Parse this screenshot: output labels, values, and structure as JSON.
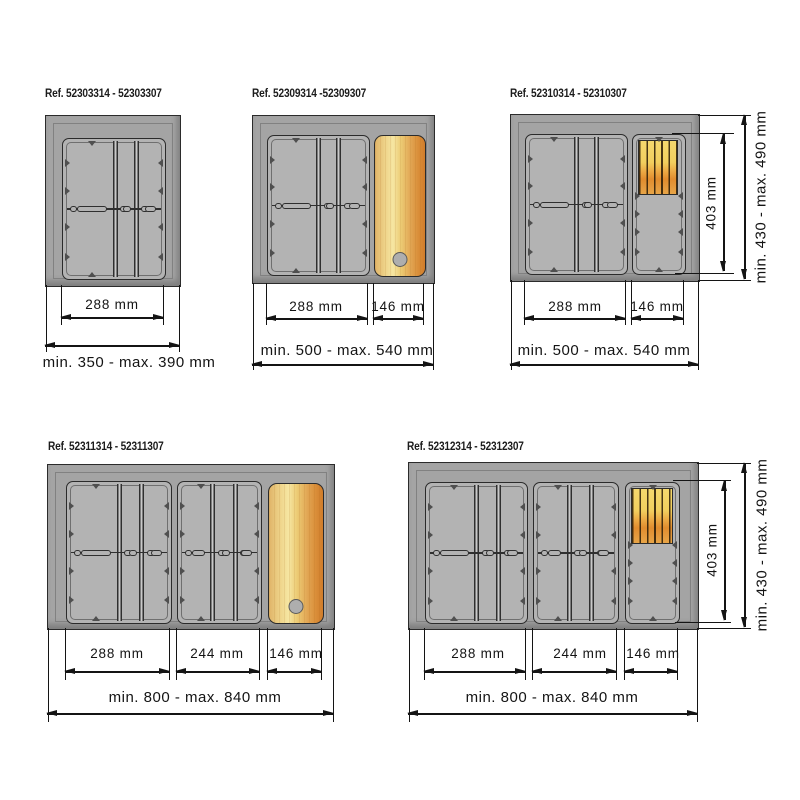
{
  "page": {
    "background": "#ffffff",
    "unit": "mm"
  },
  "colors": {
    "drawer_gray": "#a4a4a4",
    "tray_gray": "#b3b3b3",
    "outline": "#2b2b2b",
    "dimension_ink": "#141414",
    "wood_light": "#f6e6a2",
    "wood_orange": "#d07c2a",
    "knife_block_yellow": "#f4d86e",
    "knife_block_orange": "#e18c2e"
  },
  "diagrams": [
    {
      "ref": "Ref. 52303314 - 52303307",
      "widths": [
        "288 mm"
      ],
      "total": "min. 350 - max. 390 mm"
    },
    {
      "ref": "Ref. 52309314 -52309307",
      "widths": [
        "288 mm",
        "146 mm"
      ],
      "total": "min. 500 - max. 540 mm"
    },
    {
      "ref": "Ref. 52310314 - 52310307",
      "widths": [
        "288 mm",
        "146 mm"
      ],
      "total": "min. 500 - max. 540 mm",
      "inner_height": "403 mm",
      "total_height": "min. 430 - max. 490 mm"
    },
    {
      "ref": "Ref. 52311314 - 52311307",
      "widths": [
        "288 mm",
        "244 mm",
        "146 mm"
      ],
      "total": "min. 800 - max. 840 mm"
    },
    {
      "ref": "Ref. 52312314 - 52312307",
      "widths": [
        "288 mm",
        "244 mm",
        "146 mm"
      ],
      "total": "min. 800 - max. 840 mm",
      "inner_height": "403 mm",
      "total_height": "min. 430 - max. 490 mm"
    }
  ]
}
